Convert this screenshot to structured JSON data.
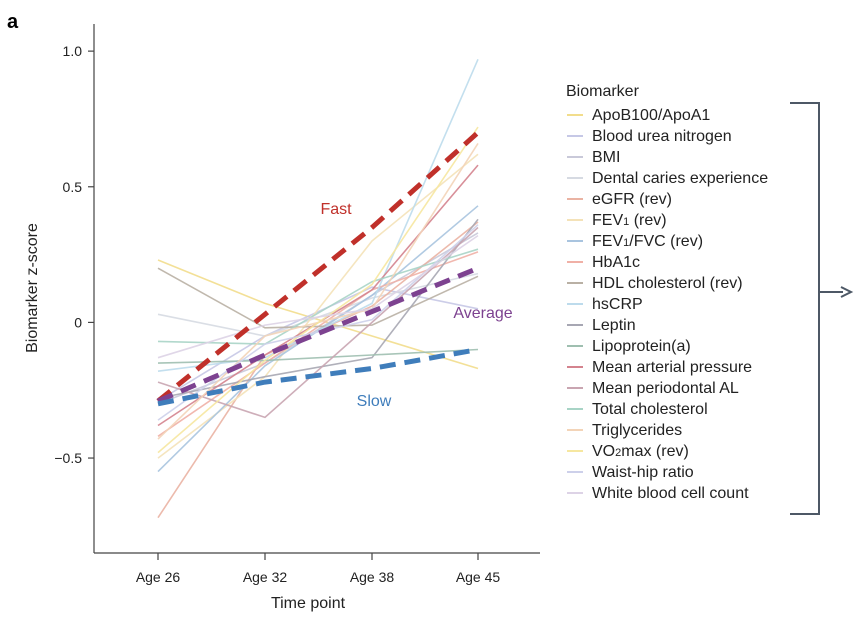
{
  "panel_label": "a",
  "chart_data": {
    "type": "line",
    "xlabel": "Time point",
    "ylabel": "Biomarker z-score",
    "categories": [
      "Age 26",
      "Age 32",
      "Age 38",
      "Age 45"
    ],
    "ylim": [
      -0.85,
      1.1
    ],
    "yticks": [
      1.0,
      0.5,
      0,
      -0.5
    ],
    "ytick_labels": [
      "1.0",
      "0.5",
      "0",
      "−0.5"
    ],
    "grid": false,
    "legend_title": "Biomarker",
    "legend_placement": "right",
    "series": [
      {
        "name": "ApoB100/ApoA1",
        "label": "ApoB100/ApoA1",
        "color": "#f2dd8c",
        "values": [
          0.23,
          0.07,
          -0.05,
          -0.17
        ]
      },
      {
        "name": "Blood urea nitrogen",
        "label": "Blood urea nitrogen",
        "color": "#c6c8e6",
        "values": [
          -0.29,
          -0.05,
          0.13,
          0.05
        ]
      },
      {
        "name": "BMI",
        "label": "BMI",
        "color": "#c9c9d9",
        "values": [
          -0.3,
          -0.15,
          0.1,
          0.33
        ]
      },
      {
        "name": "Dental caries experience",
        "label": "Dental caries experience",
        "color": "#d6dae2",
        "values": [
          0.03,
          -0.05,
          0.09,
          0.18
        ]
      },
      {
        "name": "eGFR (rev)",
        "label": "eGFR (rev)",
        "color": "#eab3a3",
        "values": [
          -0.72,
          -0.12,
          0.06,
          0.37
        ]
      },
      {
        "name": "FEV1 (rev)",
        "label": "FEV<sub>1</sub> (rev)",
        "color": "#f4e2b8",
        "values": [
          -0.5,
          -0.2,
          0.3,
          0.62
        ]
      },
      {
        "name": "FEV1/FVC (rev)",
        "label": "FEV<sub>1</sub>/FVC (rev)",
        "color": "#a9c4df",
        "values": [
          -0.55,
          -0.16,
          0.1,
          0.43
        ]
      },
      {
        "name": "HbA1c",
        "label": "HbA1c",
        "color": "#f0b0a6",
        "values": [
          -0.42,
          -0.15,
          0.12,
          0.26
        ]
      },
      {
        "name": "HDL cholesterol (rev)",
        "label": "HDL cholesterol (rev)",
        "color": "#b9b0a4",
        "values": [
          0.2,
          -0.02,
          -0.01,
          0.17
        ]
      },
      {
        "name": "hsCRP",
        "label": "hsCRP",
        "color": "#bddbec",
        "values": [
          -0.18,
          -0.13,
          0.07,
          0.97
        ]
      },
      {
        "name": "Leptin",
        "label": "Leptin",
        "color": "#a7a7b3",
        "values": [
          -0.28,
          -0.2,
          -0.13,
          0.38
        ]
      },
      {
        "name": "Lipoprotein(a)",
        "label": "Lipoprotein(a)",
        "color": "#9fbfb0",
        "values": [
          -0.15,
          -0.14,
          -0.12,
          -0.1
        ]
      },
      {
        "name": "Mean arterial pressure",
        "label": "Mean arterial pressure",
        "color": "#d4838e",
        "values": [
          -0.38,
          -0.12,
          0.12,
          0.58
        ]
      },
      {
        "name": "Mean periodontal AL",
        "label": "Mean periodontal AL",
        "color": "#c9a5b1",
        "values": [
          -0.22,
          -0.35,
          0.0,
          0.35
        ]
      },
      {
        "name": "Total cholesterol",
        "label": "Total cholesterol",
        "color": "#a8d4c6",
        "values": [
          -0.07,
          -0.08,
          0.15,
          0.27
        ]
      },
      {
        "name": "Triglycerides",
        "label": "Triglycerides",
        "color": "#f3d4b8",
        "values": [
          -0.43,
          -0.05,
          0.05,
          0.66
        ]
      },
      {
        "name": "VO2max (rev)",
        "label": "VO<sub>2</sub>max (rev)",
        "color": "#f6e7a0",
        "values": [
          -0.48,
          -0.14,
          0.14,
          0.72
        ]
      },
      {
        "name": "Waist-hip ratio",
        "label": "Waist-hip ratio",
        "color": "#cdd0ea",
        "values": [
          -0.36,
          -0.08,
          0.01,
          0.36
        ]
      },
      {
        "name": "White blood cell count",
        "label": "White blood cell count",
        "color": "#ddd3e6",
        "values": [
          -0.13,
          -0.01,
          0.05,
          0.32
        ]
      }
    ],
    "trend_lines": [
      {
        "name": "Fast",
        "label": "Fast",
        "color": "#c0302a",
        "values": [
          -0.29,
          0.03,
          0.35,
          0.7
        ]
      },
      {
        "name": "Average",
        "label": "Average",
        "color": "#7d4290",
        "values": [
          -0.29,
          -0.12,
          0.04,
          0.2
        ]
      },
      {
        "name": "Slow",
        "label": "Slow",
        "color": "#3f7dbb",
        "values": [
          -0.3,
          -0.22,
          -0.17,
          -0.1
        ]
      }
    ]
  }
}
